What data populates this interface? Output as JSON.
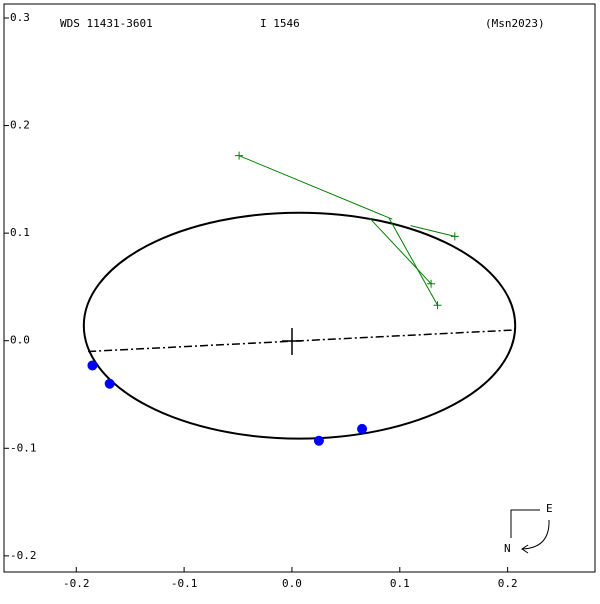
{
  "chart_data": {
    "type": "orbit",
    "title": "WDS 11431-3601",
    "subtitle": "I  1546",
    "reference": "(Msn2023)",
    "xlim": [
      -0.267,
      0.281
    ],
    "ylim": [
      -0.215,
      0.313
    ],
    "xticks": [
      -0.2,
      -0.1,
      {
        "value": 0,
        "label": "0.0"
      },
      0.1,
      0.2
    ],
    "yticks": [
      0.3,
      0.2,
      0.1,
      {
        "value": 0,
        "label": "0.0"
      },
      -0.1,
      -0.2
    ],
    "orbit": {
      "center": [
        0.007,
        0.014
      ],
      "rx": 0.2,
      "ry": 0.105,
      "color": "#000000"
    },
    "line_of_nodes": {
      "x": [
        -0.189,
        0.207
      ],
      "y": [
        -0.01,
        0.01
      ]
    },
    "series": [
      {
        "color": "#0000ff",
        "x": [
          -0.185,
          -0.169,
          0.025,
          0.065
        ],
        "y": [
          -0.023,
          -0.04,
          -0.093,
          -0.082
        ]
      },
      {
        "color": "#008000",
        "x": [
          -0.049,
          0.151,
          0.129,
          0.135
        ],
        "y": [
          0.172,
          0.097,
          0.053,
          0.033
        ],
        "fit_x": [
          0.093,
          0.11,
          0.072,
          0.09
        ],
        "fit_y": [
          0.113,
          0.107,
          0.114,
          0.114
        ]
      }
    ],
    "compass": {
      "east": "E",
      "north": "N"
    }
  }
}
